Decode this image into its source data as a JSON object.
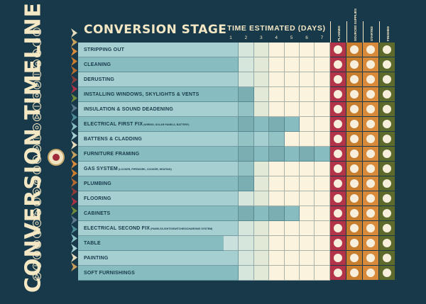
{
  "title": "CONVERSION TIMELINE",
  "stage_header": "CONVERSION STAGE",
  "time_header": "TIME ESTIMATED (DAYS)",
  "days": [
    "1",
    "2",
    "3",
    "4",
    "5",
    "6",
    "7"
  ],
  "status_columns": [
    "PLANNED",
    "SOURCED SUPPLIES",
    "STARTED",
    "FINISHED"
  ],
  "colors": {
    "background": "#17394a",
    "cream": "#f4e7c4",
    "teal_dark": "#87bcc0",
    "teal_light": "#a6cfd1",
    "planned": "#b33448",
    "sourced": "#c97e2e",
    "started": "#d88a3a",
    "finished": "#5e6a2c"
  },
  "stages": [
    {
      "label": "STRIPPING OUT",
      "note": "",
      "days": 1
    },
    {
      "label": "CLEANING",
      "note": "",
      "days": 1
    },
    {
      "label": "DERUSTING",
      "note": "",
      "days": 1
    },
    {
      "label": "INSTALLING WINDOWS, SKYLIGHTS & VENTS",
      "note": "",
      "days": 2
    },
    {
      "label": "INSULATION & SOUND DEADENING",
      "note": "",
      "days": 2
    },
    {
      "label": "ELECTRICAL FIRST FIX",
      "note": "(WIRING, SOLAR PANELS, BATTERY)",
      "days": 5
    },
    {
      "label": "BATTENS & CLADDING",
      "note": "",
      "days": 4
    },
    {
      "label": "FURNITURE FRAMING",
      "note": "",
      "days": 7
    },
    {
      "label": "GAS SYSTEM",
      "note": "(LOCKER, PIPEWORK, COOKER, HEATING)",
      "days": 2
    },
    {
      "label": "PLUMBING",
      "note": "",
      "days": 2
    },
    {
      "label": "FLOORING",
      "note": "",
      "days": 1
    },
    {
      "label": "CABINETS",
      "note": "",
      "days": 5
    },
    {
      "label": "ELECTRICAL SECOND FIX",
      "note": "(PANELS/LIGHTS/SWITCHES/CHARGING SYSTEM)",
      "days": 1
    },
    {
      "label": "TABLE",
      "note": "",
      "days": 0
    },
    {
      "label": "PAINTING",
      "note": "",
      "days": 1
    },
    {
      "label": "SOFT FURNISHINGS",
      "note": "",
      "days": 1
    }
  ],
  "icons": [
    "target-icon",
    "globe-icon",
    "compass-icon",
    "wheel-icon",
    "sun-icon",
    "sparkle-icon",
    "leaf-icon",
    "lock-icon",
    "paint-icon",
    "wave-icon",
    "drop-icon",
    "window-icon",
    "flame-icon",
    "sofa-icon",
    "moon-icon",
    "smile-icon",
    "mountain-icon",
    "rain-icon",
    "map-icon",
    "plug-icon",
    "pound-icon",
    "star-icon",
    "gear-icon",
    "fork-icon"
  ],
  "chevron_colors": [
    "#e7dcbd",
    "#c9a15e",
    "#d88a3a",
    "#c97e2e",
    "#b56a2e",
    "#8e3c3a",
    "#a83244",
    "#6e8a3a",
    "#5e7a8a",
    "#4e8c95",
    "#87bcc0",
    "#a6cfd1"
  ]
}
